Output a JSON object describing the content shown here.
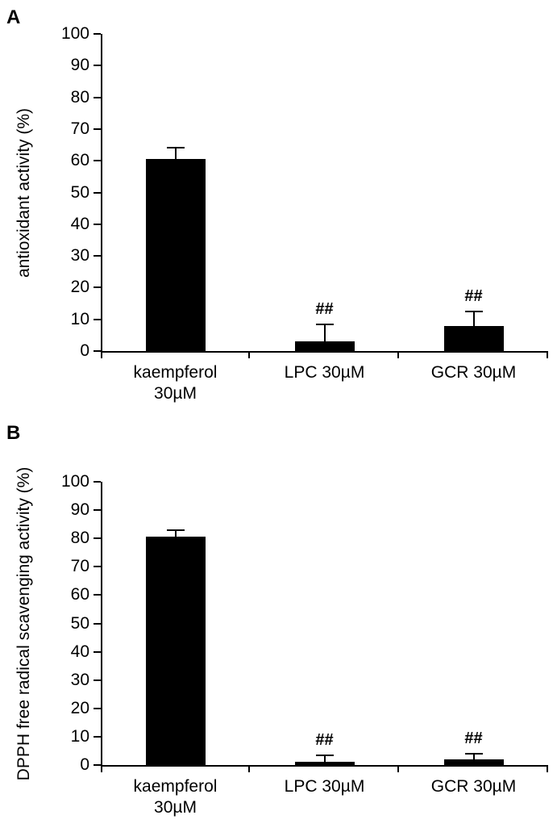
{
  "figure": {
    "description_visible_text_only": true
  },
  "chart_data": [
    {
      "type": "bar",
      "panel": "A",
      "title": "",
      "xlabel": "",
      "ylabel": "antioxidant activity (%)",
      "ylim": [
        0,
        100
      ],
      "ytick_step": 10,
      "grid": false,
      "legend": "none",
      "categories": [
        "kaempferol\n30µM",
        "LPC 30µM",
        "GCR 30µM"
      ],
      "values": [
        60.5,
        3,
        8
      ],
      "errors_plus": [
        3.5,
        5.5,
        4.5
      ],
      "annotations": [
        "",
        "##",
        "##"
      ],
      "bar_color": "#000000",
      "axis_color": "#000000"
    },
    {
      "type": "bar",
      "panel": "B",
      "title": "",
      "xlabel": "",
      "ylabel": "DPPH free radical scavenging activity (%)",
      "ylim": [
        0,
        100
      ],
      "ytick_step": 10,
      "grid": false,
      "legend": "none",
      "categories": [
        "kaempferol\n30µM",
        "LPC 30µM",
        "GCR 30µM"
      ],
      "values": [
        80.5,
        1,
        2
      ],
      "errors_plus": [
        2.5,
        2.5,
        2
      ],
      "annotations": [
        "",
        "##",
        "##"
      ],
      "bar_color": "#000000",
      "axis_color": "#000000"
    }
  ]
}
